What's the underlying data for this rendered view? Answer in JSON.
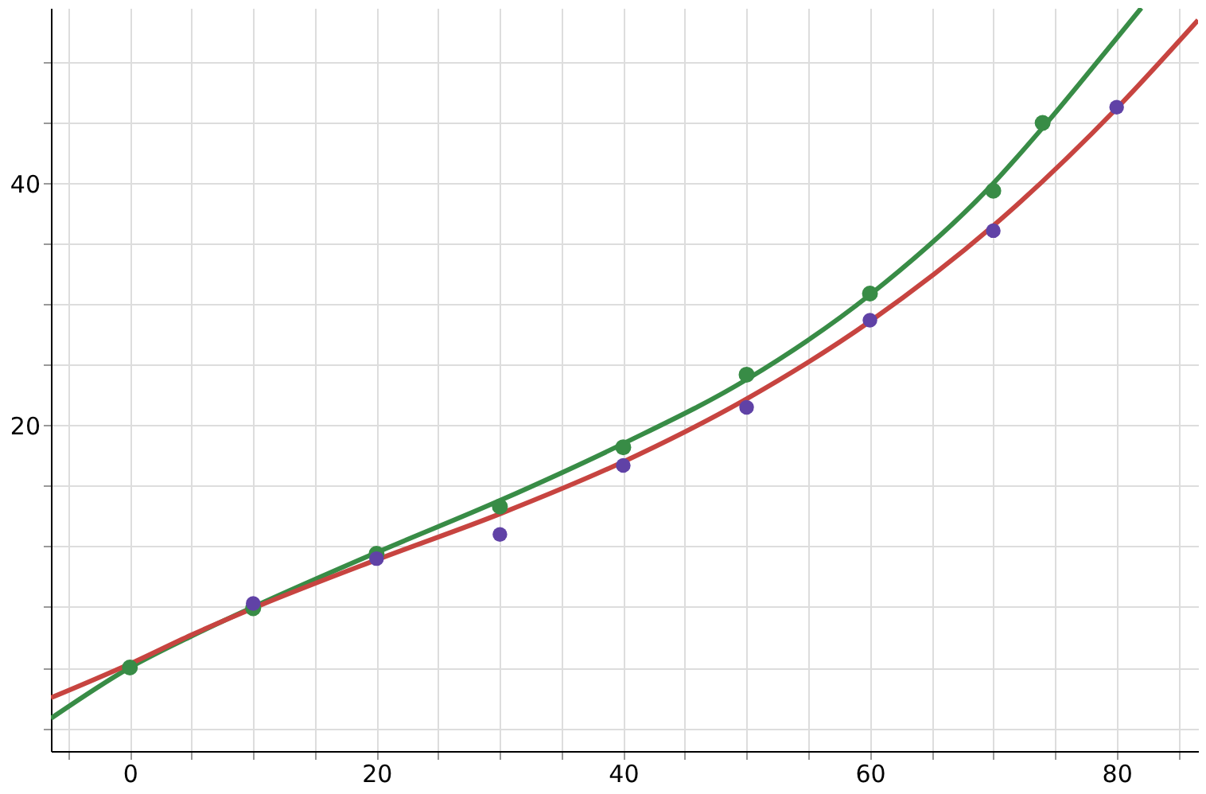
{
  "chart_data": {
    "type": "scatter",
    "grid": true,
    "xlim": [
      -6.4,
      86.6
    ],
    "ylim": [
      -6.9,
      54.5
    ],
    "xticks": [
      {
        "value": -5,
        "label": null
      },
      0,
      {
        "value": 5,
        "label": null
      },
      {
        "value": 10,
        "label": null
      },
      {
        "value": 15,
        "label": null
      },
      20,
      {
        "value": 25,
        "label": null
      },
      {
        "value": 30,
        "label": null
      },
      {
        "value": 35,
        "label": null
      },
      40,
      {
        "value": 45,
        "label": null
      },
      {
        "value": 50,
        "label": null
      },
      {
        "value": 55,
        "label": null
      },
      60,
      {
        "value": 65,
        "label": null
      },
      {
        "value": 70,
        "label": null
      },
      {
        "value": 75,
        "label": null
      },
      80,
      {
        "value": 85,
        "label": null
      }
    ],
    "yticks": [
      {
        "value": -5,
        "label": null
      },
      {
        "value": 0,
        "label": null
      },
      {
        "value": 5,
        "label": null
      },
      {
        "value": 10,
        "label": null
      },
      {
        "value": 15,
        "label": null
      },
      20,
      {
        "value": 25,
        "label": null
      },
      {
        "value": 30,
        "label": null
      },
      {
        "value": 35,
        "label": null
      },
      40,
      {
        "value": 45,
        "label": null
      },
      {
        "value": 50,
        "label": null
      }
    ],
    "series": [
      {
        "type": "line",
        "marker": "none",
        "color": "#388c46",
        "x": [
          -6.4,
          0,
          5,
          10,
          20,
          30,
          40,
          50,
          60,
          70,
          74,
          80,
          82
        ],
        "values": [
          -4.2,
          0,
          2.6,
          5.0,
          9.5,
          13.8,
          18.5,
          23.8,
          30.8,
          40.0,
          44.6,
          52.0,
          54.5
        ]
      },
      {
        "type": "line",
        "marker": "none",
        "color": "#c74440",
        "x": [
          -6.4,
          0,
          5,
          10,
          20,
          30,
          40,
          50,
          60,
          70,
          80,
          86.6
        ],
        "values": [
          -2.5,
          0.3,
          2.7,
          4.9,
          8.9,
          12.7,
          17.0,
          22.2,
          28.6,
          36.5,
          46.2,
          53.5
        ]
      },
      {
        "marker": "circle",
        "color": "#388c46",
        "x": [
          0,
          10,
          20,
          30,
          40,
          50,
          60,
          70,
          74
        ],
        "values": [
          0,
          4.9,
          9.4,
          13.3,
          18.2,
          24.2,
          30.9,
          39.4,
          45.0
        ]
      },
      {
        "marker": "circle",
        "color": "#6042a6",
        "x": [
          10,
          20,
          30,
          40,
          50,
          60,
          70,
          80
        ],
        "values": [
          5.3,
          9.0,
          11.0,
          16.7,
          21.5,
          28.7,
          36.1,
          46.3
        ]
      }
    ]
  }
}
